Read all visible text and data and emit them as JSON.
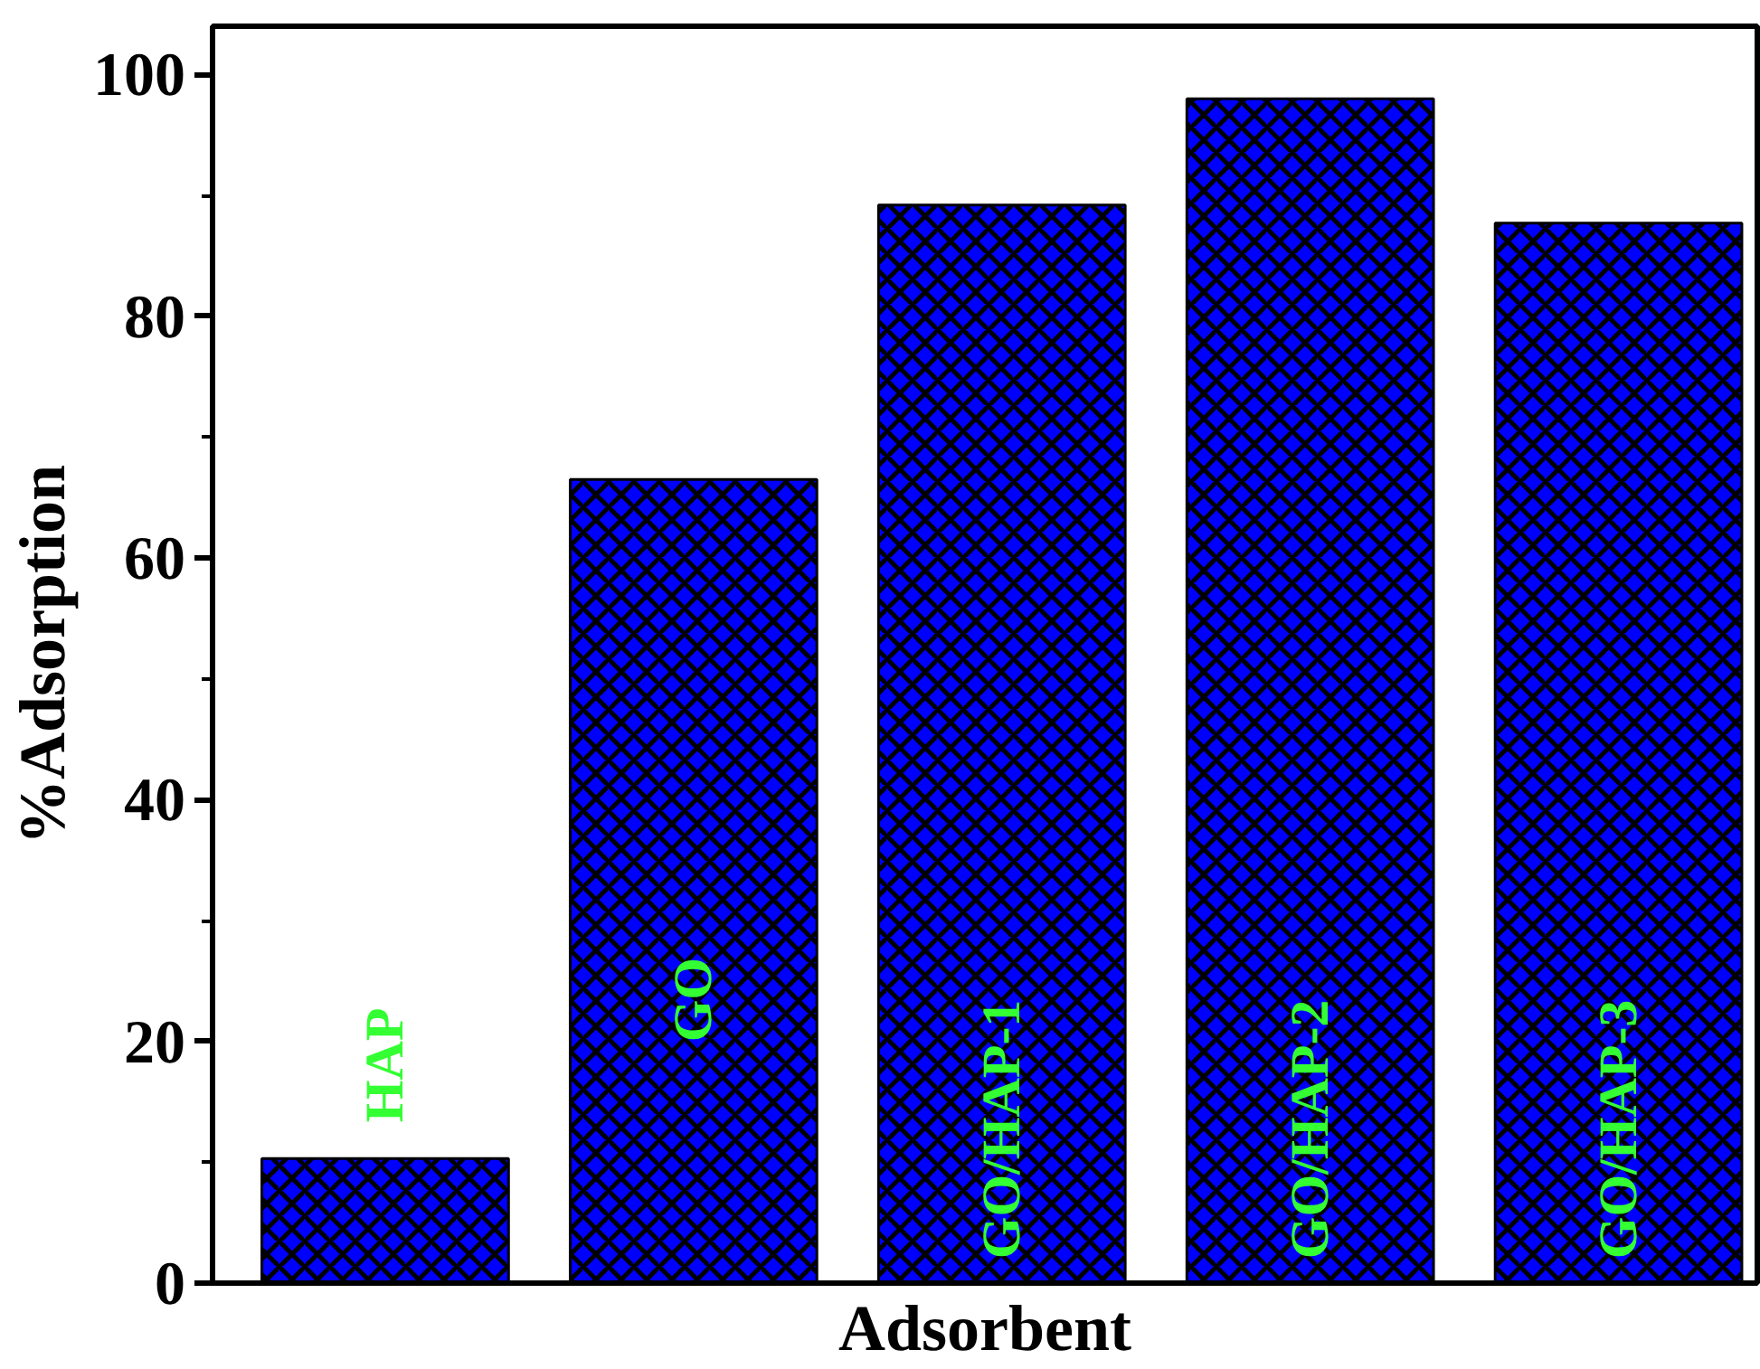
{
  "chart_data": {
    "type": "bar",
    "xlabel": "Adsorbent",
    "ylabel": "%Adsorption",
    "categories": [
      "HAP",
      "GO",
      "GO/HAP-1",
      "GO/HAP-2",
      "GO/HAP-3"
    ],
    "values": [
      10.3,
      66.5,
      89.2,
      98.0,
      87.7
    ],
    "color": "#0000ff",
    "ylim": [
      0,
      104
    ],
    "yticks": [
      0,
      20,
      40,
      60,
      80,
      100
    ],
    "tick_labels": "y",
    "grid": false
  }
}
